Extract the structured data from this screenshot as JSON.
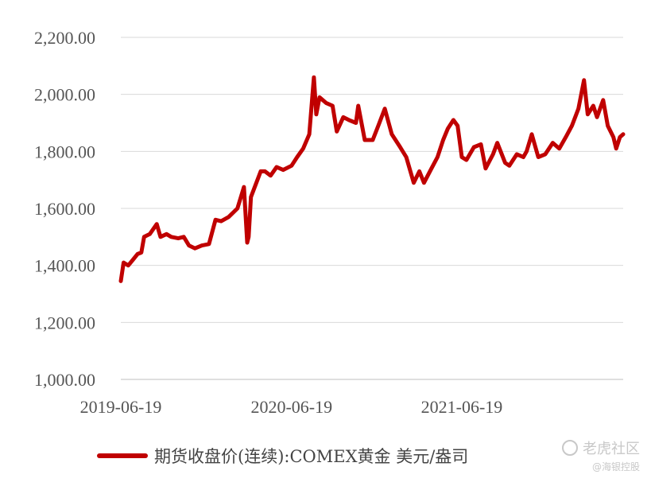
{
  "chart_data": {
    "type": "line",
    "title": "",
    "xlabel": "",
    "ylabel": "",
    "ylim": [
      1000,
      2200
    ],
    "yticks": [
      "1,000.00",
      "1,200.00",
      "1,400.00",
      "1,600.00",
      "1,800.00",
      "2,000.00",
      "2,200.00"
    ],
    "ytick_values": [
      1000,
      1200,
      1400,
      1600,
      1800,
      2000,
      2200
    ],
    "xlim": [
      "2019-06-19",
      "2022-05-31"
    ],
    "xticks": [
      "2019-06-19",
      "2020-06-19",
      "2021-06-19"
    ],
    "grid": "horizontal",
    "legend_position": "bottom",
    "color": "#c00000",
    "series": [
      {
        "name": "期货收盘价(连续):COMEX黄金 美元/盎司",
        "x": [
          "2019-06-19",
          "2019-06-25",
          "2019-07-05",
          "2019-07-15",
          "2019-07-25",
          "2019-08-02",
          "2019-08-08",
          "2019-08-20",
          "2019-09-04",
          "2019-09-12",
          "2019-09-25",
          "2019-10-05",
          "2019-10-20",
          "2019-11-01",
          "2019-11-12",
          "2019-11-25",
          "2019-12-10",
          "2019-12-25",
          "2020-01-08",
          "2020-01-20",
          "2020-02-05",
          "2020-02-24",
          "2020-03-09",
          "2020-03-16",
          "2020-03-19",
          "2020-03-24",
          "2020-04-14",
          "2020-04-23",
          "2020-05-05",
          "2020-05-18",
          "2020-06-01",
          "2020-06-19",
          "2020-07-01",
          "2020-07-14",
          "2020-07-27",
          "2020-08-06",
          "2020-08-11",
          "2020-08-18",
          "2020-09-01",
          "2020-09-15",
          "2020-09-24",
          "2020-10-08",
          "2020-10-20",
          "2020-11-04",
          "2020-11-09",
          "2020-11-23",
          "2020-12-10",
          "2020-12-22",
          "2021-01-05",
          "2021-01-20",
          "2021-02-05",
          "2021-02-20",
          "2021-03-08",
          "2021-03-20",
          "2021-03-30",
          "2021-04-15",
          "2021-04-28",
          "2021-05-10",
          "2021-05-20",
          "2021-06-01",
          "2021-06-10",
          "2021-06-19",
          "2021-06-29",
          "2021-07-15",
          "2021-07-30",
          "2021-08-09",
          "2021-08-25",
          "2021-09-03",
          "2021-09-20",
          "2021-09-29",
          "2021-10-15",
          "2021-10-29",
          "2021-11-05",
          "2021-11-16",
          "2021-11-30",
          "2021-12-15",
          "2021-12-31",
          "2022-01-14",
          "2022-01-28",
          "2022-02-10",
          "2022-02-24",
          "2022-03-08",
          "2022-03-16",
          "2022-03-28",
          "2022-04-05",
          "2022-04-18",
          "2022-04-28",
          "2022-05-10",
          "2022-05-16",
          "2022-05-24",
          "2022-05-31"
        ],
        "values": [
          1345,
          1410,
          1400,
          1420,
          1440,
          1445,
          1500,
          1510,
          1545,
          1500,
          1510,
          1500,
          1495,
          1500,
          1470,
          1460,
          1470,
          1475,
          1560,
          1555,
          1570,
          1600,
          1675,
          1480,
          1500,
          1640,
          1730,
          1730,
          1715,
          1745,
          1735,
          1750,
          1780,
          1810,
          1860,
          2060,
          1930,
          1990,
          1970,
          1960,
          1870,
          1920,
          1910,
          1900,
          1960,
          1840,
          1840,
          1890,
          1950,
          1860,
          1820,
          1780,
          1690,
          1730,
          1690,
          1740,
          1780,
          1840,
          1880,
          1910,
          1890,
          1780,
          1770,
          1815,
          1825,
          1740,
          1790,
          1830,
          1760,
          1750,
          1790,
          1780,
          1800,
          1860,
          1780,
          1790,
          1830,
          1810,
          1850,
          1890,
          1950,
          2050,
          1930,
          1960,
          1920,
          1980,
          1890,
          1850,
          1810,
          1850,
          1860
        ]
      }
    ]
  },
  "legend": {
    "label": "期货收盘价(连续):COMEX黄金 美元/盎司"
  },
  "watermark": {
    "main": "老虎社区",
    "sub": "@海银控股"
  }
}
